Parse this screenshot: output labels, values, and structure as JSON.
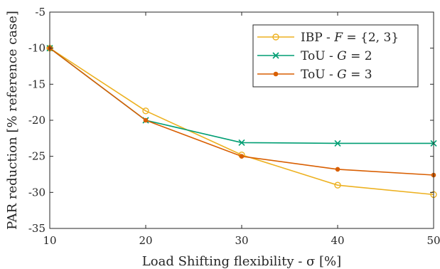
{
  "chart_data": {
    "type": "line",
    "xlabel": "Load Shifting flexibility - σ [%]",
    "ylabel": "PAR reduction [% reference case]",
    "xlim": [
      10,
      50
    ],
    "ylim": [
      -35,
      -5
    ],
    "xticks": [
      10,
      20,
      30,
      40,
      50
    ],
    "yticks": [
      -5,
      -10,
      -15,
      -20,
      -25,
      -30,
      -35
    ],
    "x": [
      10,
      20,
      30,
      40,
      50
    ],
    "grid": false,
    "legend_position": "top-right",
    "series": [
      {
        "name": "IBP - F = {2, 3}",
        "values": [
          -10,
          -18.7,
          -24.8,
          -29.0,
          -30.3
        ],
        "color": "#EDB120",
        "marker": "circle"
      },
      {
        "name": "ToU - G = 2",
        "values": [
          -10,
          -20,
          -23.1,
          -23.2,
          -23.2
        ],
        "color": "#009E73",
        "marker": "x"
      },
      {
        "name": "ToU - G = 3",
        "values": [
          -10,
          -20,
          -25.0,
          -26.8,
          -27.6
        ],
        "color": "#D95F02",
        "marker": "dot"
      }
    ]
  },
  "legend": {
    "entries": [
      {
        "prefix": "IBP - ",
        "var": "F",
        "suffix": " = {2, 3}"
      },
      {
        "prefix": "ToU - ",
        "var": "G",
        "suffix": " = 2"
      },
      {
        "prefix": "ToU - ",
        "var": "G",
        "suffix": " = 3"
      }
    ]
  }
}
